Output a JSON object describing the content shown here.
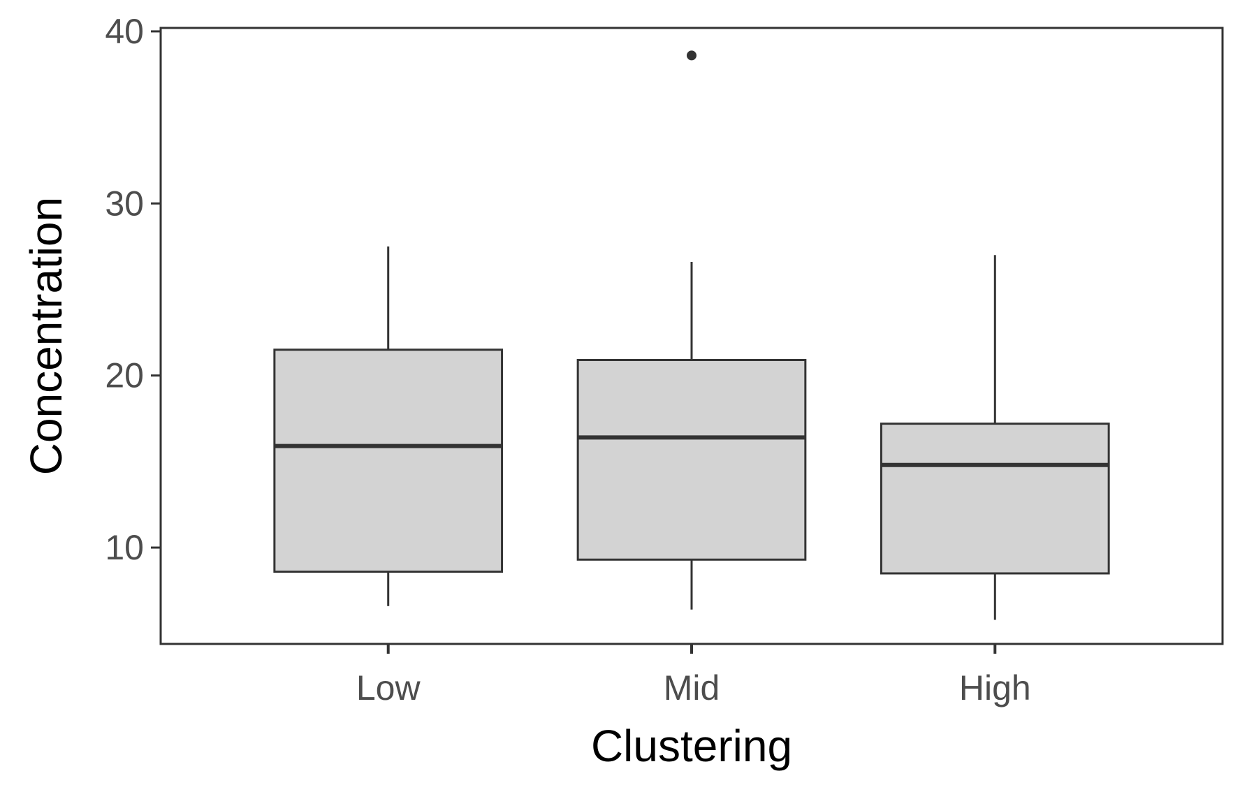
{
  "chart_data": {
    "type": "box",
    "xlabel": "Clustering",
    "ylabel": "Concentration",
    "categories": [
      "Low",
      "Mid",
      "High"
    ],
    "ylim": [
      4.4,
      40.2
    ],
    "yticks": [
      10,
      20,
      30,
      40
    ],
    "boxes": [
      {
        "category": "Low",
        "whisker_low": 6.6,
        "q1": 8.6,
        "median": 15.9,
        "q3": 21.5,
        "whisker_high": 27.5,
        "outliers": []
      },
      {
        "category": "Mid",
        "whisker_low": 6.4,
        "q1": 9.3,
        "median": 16.4,
        "q3": 20.9,
        "whisker_high": 26.6,
        "outliers": [
          38.6
        ]
      },
      {
        "category": "High",
        "whisker_low": 5.8,
        "q1": 8.5,
        "median": 14.8,
        "q3": 17.2,
        "whisker_high": 27.0,
        "outliers": []
      }
    ],
    "box_fill": "#d3d3d3",
    "line_color": "#333333",
    "grid": false,
    "legend": "none"
  }
}
